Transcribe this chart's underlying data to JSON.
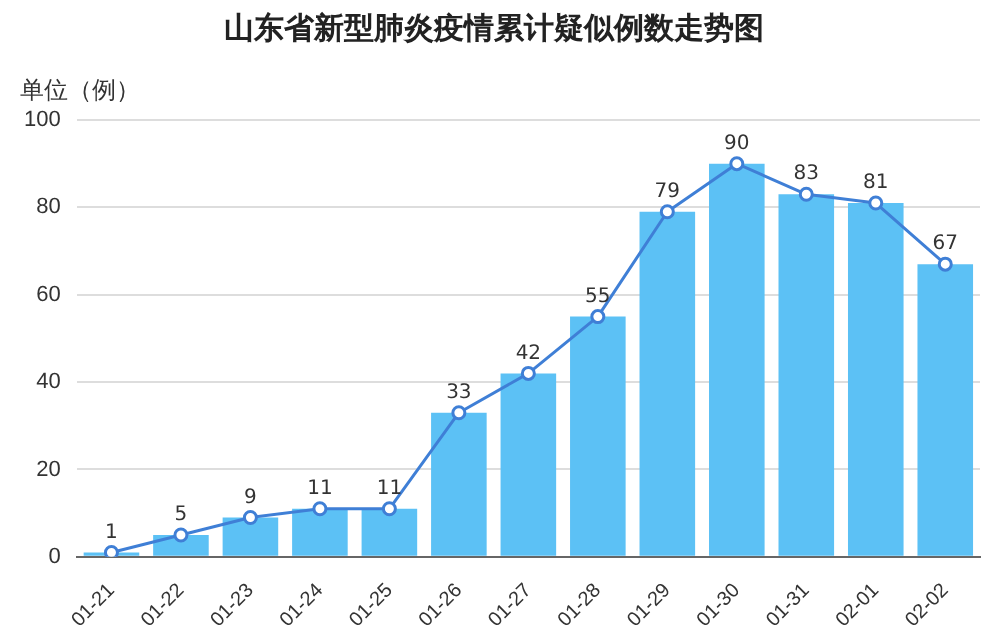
{
  "chart_data": {
    "type": "bar",
    "title": "山东省新型肺炎疫情累计疑似例数走势图",
    "ylabel": "单位（例）",
    "categories": [
      "01-21",
      "01-22",
      "01-23",
      "01-24",
      "01-25",
      "01-26",
      "01-27",
      "01-28",
      "01-29",
      "01-30",
      "01-31",
      "02-01",
      "02-02"
    ],
    "series": [
      {
        "color": "#5cc1f5",
        "values": [
          1,
          5,
          9,
          11,
          11,
          33,
          42,
          55,
          79,
          90,
          83,
          81,
          67
        ]
      },
      {
        "type": "line",
        "color": "#3f7fd6",
        "values": [
          1,
          5,
          9,
          11,
          11,
          33,
          42,
          55,
          79,
          90,
          83,
          81,
          67
        ],
        "value_labels": [
          "1",
          "5",
          "9",
          "11",
          "11",
          "33",
          "42",
          "55",
          "79",
          "90",
          "83",
          "81",
          "67"
        ]
      }
    ],
    "ylim": [
      0,
      100
    ],
    "yticks": [
      0,
      20,
      40,
      60,
      80,
      100
    ],
    "grid": "y",
    "legend": false,
    "marker": "circle"
  }
}
